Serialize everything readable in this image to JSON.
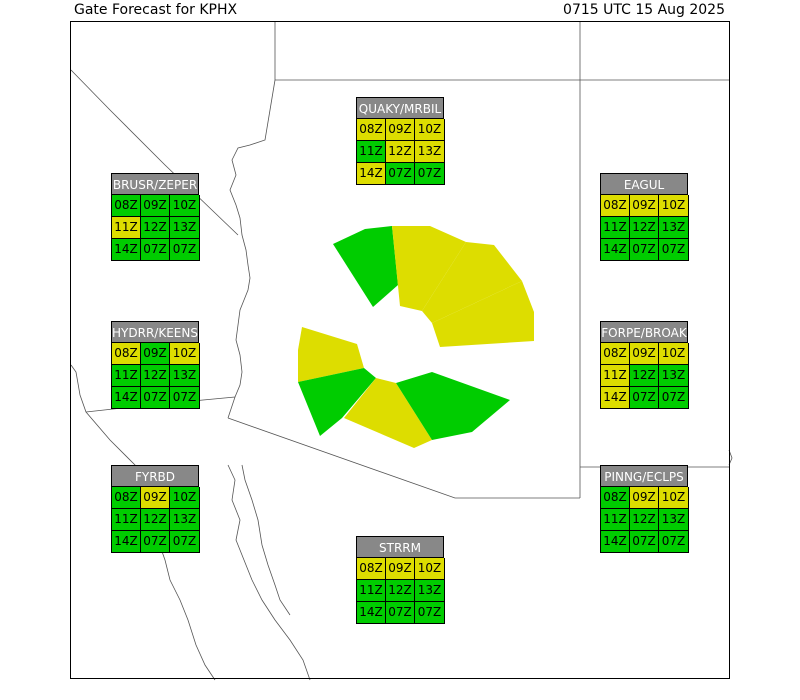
{
  "title": "Gate Forecast for KPHX",
  "timestamp": "0715 UTC 15 Aug 2025",
  "colors": {
    "green": "#00cc00",
    "yellow": "#dddd00",
    "header": "#888888",
    "border": "#000000",
    "map_lines": "#555555"
  },
  "sectors": [
    {
      "id": "north-left",
      "status": "green"
    },
    {
      "id": "north",
      "status": "yellow"
    },
    {
      "id": "north-east",
      "status": "yellow"
    },
    {
      "id": "east",
      "status": "yellow"
    },
    {
      "id": "west",
      "status": "yellow"
    },
    {
      "id": "south-west",
      "status": "green"
    },
    {
      "id": "south",
      "status": "yellow"
    },
    {
      "id": "south-east",
      "status": "green"
    }
  ],
  "gates": [
    {
      "name": "QUAKY/MRBIL",
      "cells": [
        {
          "label": "08Z",
          "status": "yellow"
        },
        {
          "label": "09Z",
          "status": "yellow"
        },
        {
          "label": "10Z",
          "status": "yellow"
        },
        {
          "label": "11Z",
          "status": "green"
        },
        {
          "label": "12Z",
          "status": "yellow"
        },
        {
          "label": "13Z",
          "status": "yellow"
        },
        {
          "label": "14Z",
          "status": "yellow"
        },
        {
          "label": "07Z",
          "status": "green"
        },
        {
          "label": "07Z",
          "status": "green"
        }
      ]
    },
    {
      "name": "BRUSR/ZEPER",
      "cells": [
        {
          "label": "08Z",
          "status": "green"
        },
        {
          "label": "09Z",
          "status": "green"
        },
        {
          "label": "10Z",
          "status": "green"
        },
        {
          "label": "11Z",
          "status": "yellow"
        },
        {
          "label": "12Z",
          "status": "green"
        },
        {
          "label": "13Z",
          "status": "green"
        },
        {
          "label": "14Z",
          "status": "green"
        },
        {
          "label": "07Z",
          "status": "green"
        },
        {
          "label": "07Z",
          "status": "green"
        }
      ]
    },
    {
      "name": "EAGUL",
      "cells": [
        {
          "label": "08Z",
          "status": "yellow"
        },
        {
          "label": "09Z",
          "status": "yellow"
        },
        {
          "label": "10Z",
          "status": "yellow"
        },
        {
          "label": "11Z",
          "status": "green"
        },
        {
          "label": "12Z",
          "status": "green"
        },
        {
          "label": "13Z",
          "status": "green"
        },
        {
          "label": "14Z",
          "status": "green"
        },
        {
          "label": "07Z",
          "status": "green"
        },
        {
          "label": "07Z",
          "status": "green"
        }
      ]
    },
    {
      "name": "HYDRR/KEENS",
      "cells": [
        {
          "label": "08Z",
          "status": "yellow"
        },
        {
          "label": "09Z",
          "status": "green"
        },
        {
          "label": "10Z",
          "status": "yellow"
        },
        {
          "label": "11Z",
          "status": "green"
        },
        {
          "label": "12Z",
          "status": "green"
        },
        {
          "label": "13Z",
          "status": "green"
        },
        {
          "label": "14Z",
          "status": "green"
        },
        {
          "label": "07Z",
          "status": "green"
        },
        {
          "label": "07Z",
          "status": "green"
        }
      ]
    },
    {
      "name": "FORPE/BROAK",
      "cells": [
        {
          "label": "08Z",
          "status": "yellow"
        },
        {
          "label": "09Z",
          "status": "yellow"
        },
        {
          "label": "10Z",
          "status": "yellow"
        },
        {
          "label": "11Z",
          "status": "yellow"
        },
        {
          "label": "12Z",
          "status": "green"
        },
        {
          "label": "13Z",
          "status": "green"
        },
        {
          "label": "14Z",
          "status": "yellow"
        },
        {
          "label": "07Z",
          "status": "green"
        },
        {
          "label": "07Z",
          "status": "green"
        }
      ]
    },
    {
      "name": "FYRBD",
      "cells": [
        {
          "label": "08Z",
          "status": "green"
        },
        {
          "label": "09Z",
          "status": "yellow"
        },
        {
          "label": "10Z",
          "status": "green"
        },
        {
          "label": "11Z",
          "status": "green"
        },
        {
          "label": "12Z",
          "status": "green"
        },
        {
          "label": "13Z",
          "status": "green"
        },
        {
          "label": "14Z",
          "status": "green"
        },
        {
          "label": "07Z",
          "status": "green"
        },
        {
          "label": "07Z",
          "status": "green"
        }
      ]
    },
    {
      "name": "PINNG/ECLPS",
      "cells": [
        {
          "label": "08Z",
          "status": "green"
        },
        {
          "label": "09Z",
          "status": "yellow"
        },
        {
          "label": "10Z",
          "status": "yellow"
        },
        {
          "label": "11Z",
          "status": "green"
        },
        {
          "label": "12Z",
          "status": "green"
        },
        {
          "label": "13Z",
          "status": "green"
        },
        {
          "label": "14Z",
          "status": "green"
        },
        {
          "label": "07Z",
          "status": "green"
        },
        {
          "label": "07Z",
          "status": "green"
        }
      ]
    },
    {
      "name": "STRRM",
      "cells": [
        {
          "label": "08Z",
          "status": "yellow"
        },
        {
          "label": "09Z",
          "status": "yellow"
        },
        {
          "label": "10Z",
          "status": "yellow"
        },
        {
          "label": "11Z",
          "status": "green"
        },
        {
          "label": "12Z",
          "status": "green"
        },
        {
          "label": "13Z",
          "status": "green"
        },
        {
          "label": "14Z",
          "status": "green"
        },
        {
          "label": "07Z",
          "status": "green"
        },
        {
          "label": "07Z",
          "status": "green"
        }
      ]
    }
  ]
}
